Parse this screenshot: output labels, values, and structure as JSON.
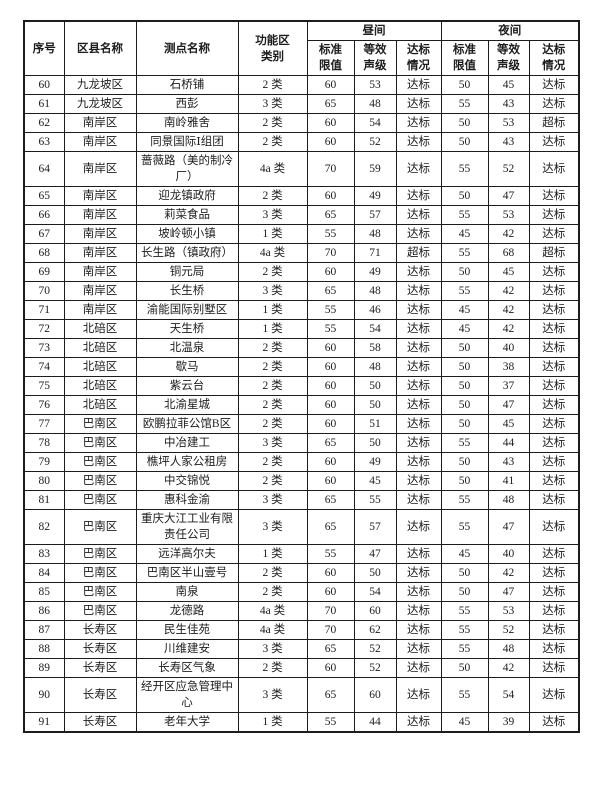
{
  "table": {
    "headers": {
      "serial": "序号",
      "district": "区县名称",
      "site": "测点名称",
      "category": "功能区类别",
      "day": "昼间",
      "night": "夜间",
      "limit": "标准限值",
      "level": "等效声级",
      "status": "达标情况"
    },
    "rows": [
      [
        "60",
        "九龙坡区",
        "石桥铺",
        "2 类",
        "60",
        "53",
        "达标",
        "50",
        "45",
        "达标"
      ],
      [
        "61",
        "九龙坡区",
        "西彭",
        "3 类",
        "65",
        "48",
        "达标",
        "55",
        "43",
        "达标"
      ],
      [
        "62",
        "南岸区",
        "南岭雅舍",
        "2 类",
        "60",
        "54",
        "达标",
        "50",
        "53",
        "超标"
      ],
      [
        "63",
        "南岸区",
        "同景国际Ⅰ组团",
        "2 类",
        "60",
        "52",
        "达标",
        "50",
        "43",
        "达标"
      ],
      [
        "64",
        "南岸区",
        "蔷薇路（美的制冷厂）",
        "4a 类",
        "70",
        "59",
        "达标",
        "55",
        "52",
        "达标"
      ],
      [
        "65",
        "南岸区",
        "迎龙镇政府",
        "2 类",
        "60",
        "49",
        "达标",
        "50",
        "47",
        "达标"
      ],
      [
        "66",
        "南岸区",
        "莉菜食品",
        "3 类",
        "65",
        "57",
        "达标",
        "55",
        "53",
        "达标"
      ],
      [
        "67",
        "南岸区",
        "坡岭顿小镇",
        "1 类",
        "55",
        "48",
        "达标",
        "45",
        "42",
        "达标"
      ],
      [
        "68",
        "南岸区",
        "长生路（镇政府）",
        "4a 类",
        "70",
        "71",
        "超标",
        "55",
        "68",
        "超标"
      ],
      [
        "69",
        "南岸区",
        "铜元局",
        "2 类",
        "60",
        "49",
        "达标",
        "50",
        "45",
        "达标"
      ],
      [
        "70",
        "南岸区",
        "长生桥",
        "3 类",
        "65",
        "48",
        "达标",
        "55",
        "42",
        "达标"
      ],
      [
        "71",
        "南岸区",
        "渝能国际别墅区",
        "1 类",
        "55",
        "46",
        "达标",
        "45",
        "42",
        "达标"
      ],
      [
        "72",
        "北碚区",
        "天生桥",
        "1 类",
        "55",
        "54",
        "达标",
        "45",
        "42",
        "达标"
      ],
      [
        "73",
        "北碚区",
        "北温泉",
        "2 类",
        "60",
        "58",
        "达标",
        "50",
        "40",
        "达标"
      ],
      [
        "74",
        "北碚区",
        "歇马",
        "2 类",
        "60",
        "48",
        "达标",
        "50",
        "38",
        "达标"
      ],
      [
        "75",
        "北碚区",
        "紫云台",
        "2 类",
        "60",
        "50",
        "达标",
        "50",
        "37",
        "达标"
      ],
      [
        "76",
        "北碚区",
        "北渝星城",
        "2 类",
        "60",
        "50",
        "达标",
        "50",
        "47",
        "达标"
      ],
      [
        "77",
        "巴南区",
        "欧鹏拉菲公馆B区",
        "2 类",
        "60",
        "51",
        "达标",
        "50",
        "45",
        "达标"
      ],
      [
        "78",
        "巴南区",
        "中冶建工",
        "3 类",
        "65",
        "50",
        "达标",
        "55",
        "44",
        "达标"
      ],
      [
        "79",
        "巴南区",
        "樵坪人家公租房",
        "2 类",
        "60",
        "49",
        "达标",
        "50",
        "43",
        "达标"
      ],
      [
        "80",
        "巴南区",
        "中交锦悦",
        "2 类",
        "60",
        "45",
        "达标",
        "50",
        "41",
        "达标"
      ],
      [
        "81",
        "巴南区",
        "惠科金渝",
        "3 类",
        "65",
        "55",
        "达标",
        "55",
        "48",
        "达标"
      ],
      [
        "82",
        "巴南区",
        "重庆大江工业有限责任公司",
        "3 类",
        "65",
        "57",
        "达标",
        "55",
        "47",
        "达标"
      ],
      [
        "83",
        "巴南区",
        "远洋高尔夫",
        "1 类",
        "55",
        "47",
        "达标",
        "45",
        "40",
        "达标"
      ],
      [
        "84",
        "巴南区",
        "巴南区半山壹号",
        "2 类",
        "60",
        "50",
        "达标",
        "50",
        "42",
        "达标"
      ],
      [
        "85",
        "巴南区",
        "南泉",
        "2 类",
        "60",
        "54",
        "达标",
        "50",
        "47",
        "达标"
      ],
      [
        "86",
        "巴南区",
        "龙德路",
        "4a 类",
        "70",
        "60",
        "达标",
        "55",
        "53",
        "达标"
      ],
      [
        "87",
        "长寿区",
        "民生佳苑",
        "4a 类",
        "70",
        "62",
        "达标",
        "55",
        "52",
        "达标"
      ],
      [
        "88",
        "长寿区",
        "川维建安",
        "3 类",
        "65",
        "52",
        "达标",
        "55",
        "48",
        "达标"
      ],
      [
        "89",
        "长寿区",
        "长寿区气象",
        "2 类",
        "60",
        "52",
        "达标",
        "50",
        "42",
        "达标"
      ],
      [
        "90",
        "长寿区",
        "经开区应急管理中心",
        "3 类",
        "65",
        "60",
        "达标",
        "55",
        "54",
        "达标"
      ],
      [
        "91",
        "长寿区",
        "老年大学",
        "1 类",
        "55",
        "44",
        "达标",
        "45",
        "39",
        "达标"
      ]
    ]
  },
  "colors": {
    "text": "#1c1c1c",
    "border": "#1c1c1c",
    "background": "#ffffff"
  }
}
